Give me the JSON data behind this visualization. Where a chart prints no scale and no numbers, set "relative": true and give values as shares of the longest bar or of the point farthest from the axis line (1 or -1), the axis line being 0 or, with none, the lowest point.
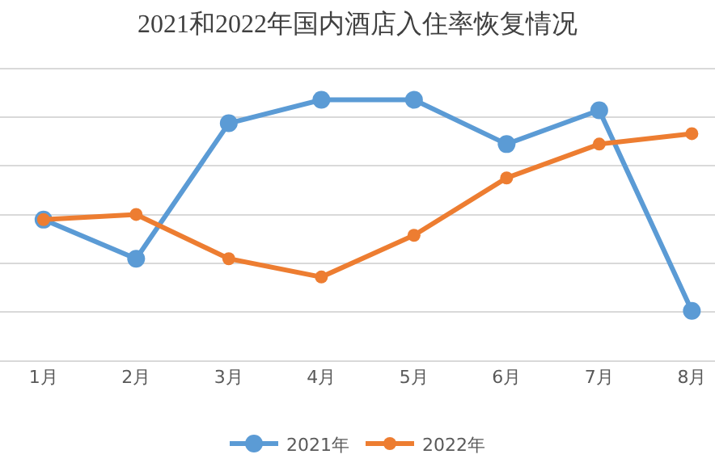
{
  "chart_data": {
    "type": "line",
    "title": "2021和2022年国内酒店入住率恢复情况",
    "categories": [
      "1月",
      "2月",
      "3月",
      "4月",
      "5月",
      "6月",
      "7月",
      "8月"
    ],
    "relative": true,
    "grid": "y",
    "legend": "bottom",
    "marker": "circle",
    "line_style": "solid",
    "series": [
      {
        "name": "2021年",
        "color": "#5b9bd5",
        "values": [
          0.54,
          0.39,
          0.91,
          1,
          1,
          0.83,
          0.96,
          0.19
        ]
      },
      {
        "name": "2022年",
        "color": "#ed7d31",
        "values": [
          0.54,
          0.56,
          0.39,
          0.32,
          0.48,
          0.7,
          0.83,
          0.87
        ]
      }
    ]
  }
}
